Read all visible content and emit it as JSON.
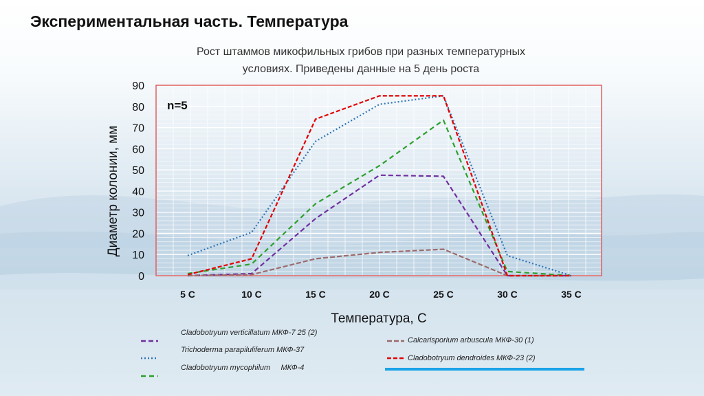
{
  "slide": {
    "title": "Экспериментальная часть. Температура"
  },
  "chart_data": {
    "type": "line",
    "title_line1": "Рост штаммов микофильных грибов при разных температурных",
    "title_line2": "условиях. Приведены данные на 5 день роста",
    "annotation": "n=5",
    "xlabel": "Температура, С",
    "ylabel": "Диаметр колонии, мм",
    "categories": [
      "5 С",
      "10 С",
      "15 С",
      "20 С",
      "25 С",
      "30 С",
      "35 С"
    ],
    "ylim": [
      0,
      90
    ],
    "yticks": [
      0,
      10,
      20,
      30,
      40,
      50,
      60,
      70,
      80,
      90
    ],
    "series": [
      {
        "name": "Cladobotryum verticillatum МКФ-7 25 (2)",
        "color": "#7030a0",
        "dash": "7,4",
        "values": [
          0,
          1,
          27,
          47.5,
          47,
          0,
          0
        ]
      },
      {
        "name": "Trichoderma parapiluliferum МКФ-37",
        "color": "#2e75b6",
        "dash": "2,3",
        "values": [
          9.5,
          20.5,
          63.5,
          81,
          85,
          9.5,
          0
        ]
      },
      {
        "name": "Cladobotryum mycophilum     МКФ-4",
        "color": "#2ca02c",
        "dash": "7,5",
        "values": [
          1,
          5.5,
          34,
          52,
          73.5,
          2,
          0
        ]
      },
      {
        "name": "Calcarisporium arbuscula МКФ-30 (1)",
        "color": "#9c6b6b",
        "dash": "7,3",
        "values": [
          0,
          0.5,
          8,
          11,
          12.5,
          0,
          0
        ]
      },
      {
        "name": "Cladobotryum dendroides МКФ-23 (2)",
        "color": "#e00000",
        "dash": "6,3",
        "values": [
          0.5,
          8,
          74,
          85,
          85,
          0,
          0
        ]
      }
    ],
    "grid": true,
    "legend_position": "bottom",
    "legend_extra_line_color": "#1aa3e8"
  }
}
